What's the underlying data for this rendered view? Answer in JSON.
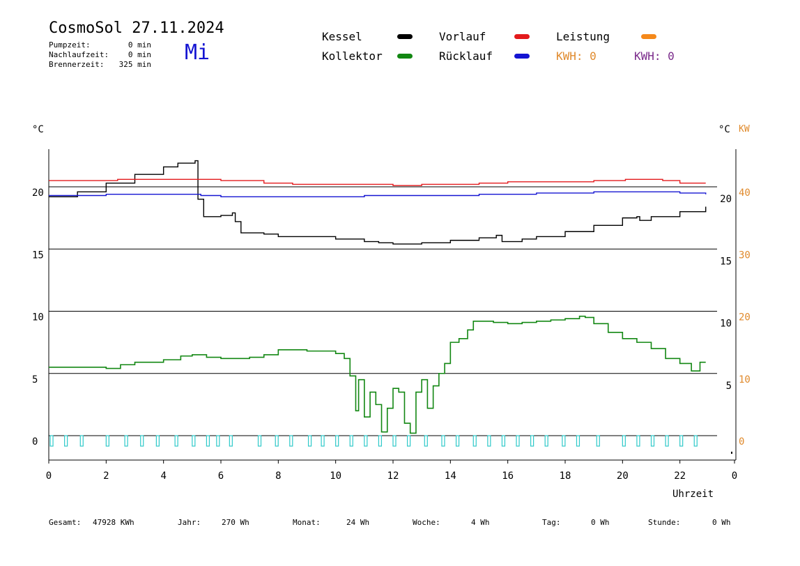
{
  "header": {
    "title": "CosmoSol 27.11.2024",
    "weekday": "Mi",
    "stats": [
      {
        "label": "Pumpzeit:",
        "value": "0 min"
      },
      {
        "label": "Nachlaufzeit:",
        "value": "0 min"
      },
      {
        "label": "Brennerzeit:",
        "value": "325 min"
      }
    ]
  },
  "legend": {
    "items": [
      {
        "label": "Kessel",
        "color": "#000000"
      },
      {
        "label": "Vorlauf",
        "color": "#e31a1c"
      },
      {
        "label": "Leistung",
        "color": "#f5891a"
      },
      {
        "label": "Kollektor",
        "color": "#128712"
      },
      {
        "label": "Rücklauf",
        "color": "#1414d2"
      }
    ],
    "kwh1": {
      "text": "KWH: 0",
      "color": "#e08a2c"
    },
    "kwh2": {
      "text": "KWH: 0",
      "color": "#7a2a8a"
    }
  },
  "footer": [
    {
      "label": "Gesamt:",
      "value": "47928 KWh"
    },
    {
      "label": "Jahr:",
      "value": "270 Wh"
    },
    {
      "label": "Monat:",
      "value": "24 Wh"
    },
    {
      "label": "Woche:",
      "value": "4 Wh"
    },
    {
      "label": "Tag:",
      "value": "0 Wh"
    },
    {
      "label": "Stunde:",
      "value": "0 Wh"
    }
  ],
  "chart_data": {
    "type": "line",
    "xlabel": "Uhrzeit",
    "xlim": [
      0,
      24
    ],
    "x_ticks": [
      "0",
      "2",
      "4",
      "6",
      "8",
      "10",
      "12",
      "14",
      "16",
      "18",
      "20",
      "22",
      "0"
    ],
    "ylim_left": [
      -1.5,
      23.5
    ],
    "left_unit": "°C",
    "left_ticks": [
      "0",
      "5",
      "10",
      "15",
      "20"
    ],
    "right_unit": "°C",
    "right_ticks": [
      "5",
      "10",
      "15",
      "20"
    ],
    "right2_unit": "KW",
    "right2_ticks": [
      "0",
      "10",
      "20",
      "30",
      "40"
    ],
    "right2_color": "#e08a2c",
    "series": [
      {
        "name": "Kessel",
        "color": "#000000",
        "x": [
          0,
          1,
          2,
          3,
          4,
          4.5,
          5.1,
          5.2,
          5.4,
          6,
          6.4,
          6.5,
          6.7,
          7.5,
          8,
          9,
          10,
          11,
          11.5,
          12,
          13,
          14,
          15,
          15.6,
          15.8,
          16,
          16.5,
          17,
          18,
          19,
          20,
          20.5,
          20.6,
          21,
          22,
          22.9
        ],
        "y": [
          19.2,
          19.6,
          20.3,
          21,
          21.6,
          21.9,
          22.1,
          19,
          17.6,
          17.7,
          17.9,
          17.2,
          16.3,
          16.2,
          16,
          16,
          15.8,
          15.6,
          15.5,
          15.4,
          15.5,
          15.7,
          15.9,
          16.1,
          15.6,
          15.6,
          15.8,
          16,
          16.4,
          16.9,
          17.5,
          17.6,
          17.3,
          17.6,
          18,
          18.4
        ]
      },
      {
        "name": "Vorlauf",
        "color": "#e31a1c",
        "x": [
          0,
          1.6,
          2.3,
          2.4,
          5.8,
          6,
          7.5,
          8.5,
          10,
          12,
          13,
          15,
          16,
          18,
          19,
          20,
          20.1,
          20.8,
          21.4,
          22,
          22.9
        ],
        "y": [
          20.5,
          20.5,
          20.5,
          20.6,
          20.6,
          20.5,
          20.3,
          20.2,
          20.2,
          20.1,
          20.2,
          20.3,
          20.4,
          20.4,
          20.5,
          20.5,
          20.6,
          20.6,
          20.5,
          20.3,
          20.3
        ]
      },
      {
        "name": "Rücklauf",
        "color": "#1414d2",
        "x": [
          0,
          1,
          2,
          4,
          5.1,
          5.3,
          6,
          7.5,
          8,
          9,
          10,
          11,
          12,
          13,
          14,
          15,
          16,
          17,
          18,
          19,
          20,
          21,
          22,
          22.9
        ],
        "y": [
          19.3,
          19.3,
          19.4,
          19.4,
          19.4,
          19.3,
          19.2,
          19.2,
          19.2,
          19.2,
          19.2,
          19.3,
          19.3,
          19.3,
          19.3,
          19.4,
          19.4,
          19.5,
          19.5,
          19.6,
          19.6,
          19.6,
          19.5,
          19.4
        ]
      },
      {
        "name": "Kollektor",
        "color": "#128712",
        "x": [
          0,
          1,
          2,
          2.5,
          3,
          4,
          4.6,
          5,
          5.5,
          6,
          7,
          7.5,
          8,
          9,
          9.5,
          10,
          10.3,
          10.5,
          10.7,
          10.8,
          11,
          11.2,
          11.4,
          11.6,
          11.8,
          12,
          12.2,
          12.4,
          12.6,
          12.8,
          13,
          13.2,
          13.4,
          13.6,
          13.8,
          14,
          14.3,
          14.6,
          14.8,
          15,
          15.5,
          16,
          16.5,
          17,
          17.5,
          18,
          18.5,
          18.7,
          19,
          19.5,
          20,
          20.5,
          21,
          21.5,
          22,
          22.4,
          22.7,
          22.9
        ],
        "y": [
          5.5,
          5.5,
          5.4,
          5.7,
          5.9,
          6.1,
          6.4,
          6.5,
          6.3,
          6.2,
          6.3,
          6.5,
          6.9,
          6.8,
          6.8,
          6.6,
          6.2,
          4.8,
          2.0,
          4.5,
          1.5,
          3.5,
          2.5,
          0.3,
          2.2,
          3.8,
          3.5,
          1.0,
          0.2,
          3.5,
          4.5,
          2.2,
          4.0,
          5.0,
          5.8,
          7.5,
          7.8,
          8.5,
          9.2,
          9.2,
          9.1,
          9.0,
          9.1,
          9.2,
          9.3,
          9.4,
          9.6,
          9.5,
          9.0,
          8.3,
          7.8,
          7.5,
          7.0,
          6.2,
          5.8,
          5.2,
          5.9,
          5.9
        ]
      }
    ],
    "pump_pulses": {
      "name": "Leistung",
      "color": "#2ec9c9",
      "x": [
        0.05,
        0.55,
        1.1,
        2,
        2.65,
        3.2,
        3.75,
        4.4,
        5,
        5.5,
        5.85,
        6.3,
        7.3,
        7.9,
        8.4,
        9.05,
        9.5,
        10,
        10.5,
        11,
        11.5,
        12,
        12.5,
        13.1,
        13.7,
        14.2,
        14.8,
        15.3,
        15.8,
        16.3,
        16.8,
        17.3,
        17.9,
        18.4,
        19.1,
        20,
        20.5,
        21,
        21.5,
        22,
        22.5
      ],
      "y": [
        0.0
      ]
    }
  }
}
